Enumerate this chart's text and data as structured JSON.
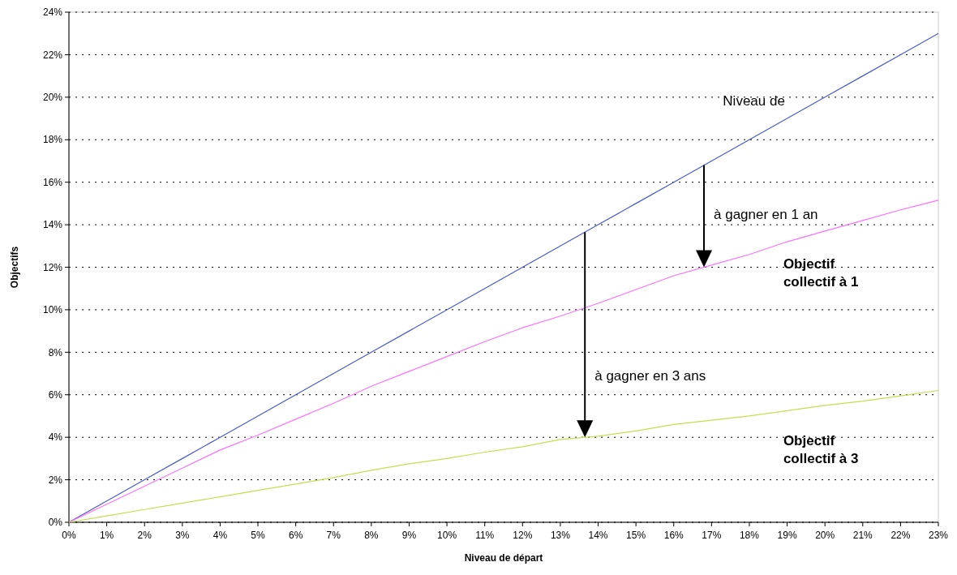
{
  "chart_data": {
    "type": "line",
    "xlabel": "Niveau de départ",
    "ylabel": "Objectifs",
    "x": [
      0,
      1,
      2,
      3,
      4,
      5,
      6,
      7,
      8,
      9,
      10,
      11,
      12,
      13,
      14,
      15,
      16,
      17,
      18,
      19,
      20,
      21,
      22,
      23
    ],
    "series": [
      {
        "name": "Niveau de",
        "color": "#4a5bc4",
        "values": [
          0,
          1,
          2,
          3,
          4,
          5,
          6,
          7,
          8,
          9,
          10,
          11,
          12,
          13,
          14,
          15,
          16,
          17,
          18,
          19,
          20,
          21,
          22,
          23
        ]
      },
      {
        "name": "Objectif collectif à 1",
        "color": "#ff70ff",
        "values": [
          0,
          0.85,
          1.7,
          2.55,
          3.4,
          4.1,
          4.85,
          5.6,
          6.4,
          7.1,
          7.8,
          8.5,
          9.15,
          9.7,
          10.3,
          10.95,
          11.6,
          12.1,
          12.6,
          13.2,
          13.7,
          14.2,
          14.7,
          15.15
        ]
      },
      {
        "name": "Objectif collectif à 3",
        "color": "#c8dc50",
        "values": [
          0,
          0.3,
          0.6,
          0.9,
          1.2,
          1.5,
          1.8,
          2.1,
          2.45,
          2.75,
          3.0,
          3.3,
          3.55,
          3.9,
          4.05,
          4.3,
          4.6,
          4.8,
          5.0,
          5.25,
          5.5,
          5.7,
          5.95,
          6.2
        ]
      }
    ],
    "xlim": [
      0,
      23
    ],
    "xticks": [
      {
        "value": 0,
        "label": "0%"
      },
      {
        "value": 1,
        "label": "1%"
      },
      {
        "value": 2,
        "label": "2%"
      },
      {
        "value": 3,
        "label": "3%"
      },
      {
        "value": 4,
        "label": "4%"
      },
      {
        "value": 5,
        "label": "5%"
      },
      {
        "value": 6,
        "label": "6%"
      },
      {
        "value": 7,
        "label": "7%"
      },
      {
        "value": 8,
        "label": "8%"
      },
      {
        "value": 9,
        "label": "9%"
      },
      {
        "value": 10,
        "label": "10%"
      },
      {
        "value": 11,
        "label": "11%"
      },
      {
        "value": 12,
        "label": "12%"
      },
      {
        "value": 13,
        "label": "13%"
      },
      {
        "value": 14,
        "label": "14%"
      },
      {
        "value": 15,
        "label": "15%"
      },
      {
        "value": 16,
        "label": "16%"
      },
      {
        "value": 17,
        "label": "17%"
      },
      {
        "value": 18,
        "label": "18%"
      },
      {
        "value": 19,
        "label": "19%"
      },
      {
        "value": 20,
        "label": "20%"
      },
      {
        "value": 21,
        "label": "21%"
      },
      {
        "value": 22,
        "label": "22%"
      },
      {
        "value": 23,
        "label": "23%"
      }
    ],
    "ylim": [
      0,
      24
    ],
    "yticks": [
      {
        "value": 0,
        "label": "0%"
      },
      {
        "value": 2,
        "label": "2%"
      },
      {
        "value": 4,
        "label": "4%"
      },
      {
        "value": 6,
        "label": "6%"
      },
      {
        "value": 8,
        "label": "8%"
      },
      {
        "value": 10,
        "label": "10%"
      },
      {
        "value": 12,
        "label": "12%"
      },
      {
        "value": 14,
        "label": "14%"
      },
      {
        "value": 16,
        "label": "16%"
      },
      {
        "value": 18,
        "label": "18%"
      },
      {
        "value": 20,
        "label": "20%"
      },
      {
        "value": 22,
        "label": "22%"
      },
      {
        "value": 24,
        "label": "24%"
      }
    ],
    "grid": "y",
    "marker": "none",
    "line_style": "solid",
    "annotations": [
      "à gagner en 1 an",
      "à gagner en 3 ans"
    ]
  }
}
